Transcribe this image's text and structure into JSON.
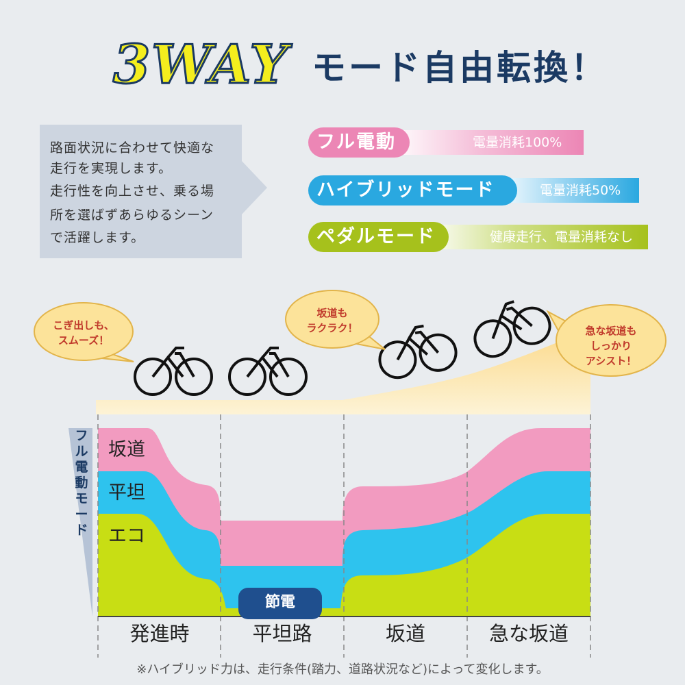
{
  "header": {
    "way": "3WAY",
    "title": "モード自由転換！"
  },
  "description": {
    "lines": [
      "路面状況に合わせて快適な",
      "走行を実現します。",
      "走行性を向上させ、乗る場",
      "所を選ばずあらゆるシーン",
      "で活躍します。"
    ]
  },
  "modes": [
    {
      "name": "フル電動",
      "note": "電量消耗100%",
      "color": "#ec86b5"
    },
    {
      "name": "ハイブリッドモード",
      "note": "電量消耗50%",
      "color": "#2aa8e0"
    },
    {
      "name": "ペダルモード",
      "note": "健康走行、電量消耗なし",
      "color": "#a6c11c"
    }
  ],
  "bubbles": [
    {
      "line1": "こぎ出しも、",
      "line2": "スムーズ！"
    },
    {
      "line1": "坂道も",
      "line2": "ラクラク！"
    },
    {
      "line1": "急な坂道も",
      "line2": "しっかり",
      "line3": "アシスト！"
    }
  ],
  "chart": {
    "vertical_label": [
      "フ",
      "ル",
      "電",
      "動",
      "モ",
      "ー",
      "ド"
    ],
    "rows": [
      "坂道",
      "平坦",
      "エコ"
    ],
    "colors": {
      "slope": "#f29bc0",
      "flat": "#2ec3ee",
      "eco": "#c8de14",
      "road": "#fbe1a2"
    },
    "categories": [
      "発進時",
      "平坦路",
      "坂道",
      "急な坂道"
    ],
    "save_label": "節電"
  },
  "footnote": "※ハイブリッド力は、走行条件(踏力、道路状況など)によって変化します。"
}
